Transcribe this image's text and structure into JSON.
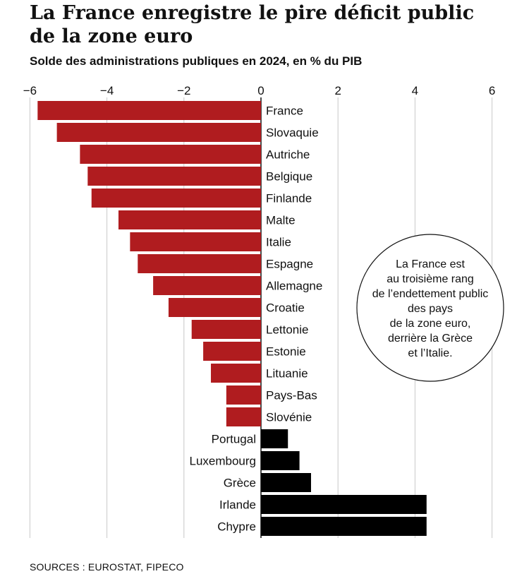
{
  "chart_data": {
    "type": "bar",
    "orientation": "horizontal",
    "title": "La France enregistre le pire déficit public de la zone euro",
    "subtitle": "Solde des administrations publiques en 2024, en % du PIB",
    "xlim": [
      -6,
      6
    ],
    "xticks": [
      -6,
      -4,
      -2,
      0,
      2,
      4,
      6
    ],
    "xtick_labels": [
      "−6",
      "−4",
      "−2",
      "0",
      "2",
      "4",
      "6"
    ],
    "grid": true,
    "categories": [
      "France",
      "Slovaquie",
      "Autriche",
      "Belgique",
      "Finlande",
      "Malte",
      "Italie",
      "Espagne",
      "Allemagne",
      "Croatie",
      "Lettonie",
      "Estonie",
      "Lituanie",
      "Pays-Bas",
      "Slovénie",
      "Portugal",
      "Luxembourg",
      "Grèce",
      "Irlande",
      "Chypre"
    ],
    "values": [
      -5.8,
      -5.3,
      -4.7,
      -4.5,
      -4.4,
      -3.7,
      -3.4,
      -3.2,
      -2.8,
      -2.4,
      -1.8,
      -1.5,
      -1.3,
      -0.9,
      -0.9,
      0.7,
      1.0,
      1.3,
      4.3,
      4.3
    ],
    "colors": {
      "negative": "#b01c1f",
      "positive": "#000000"
    },
    "annotation": [
      "La France est",
      "au troisième rang",
      "de l’endettement public",
      "des pays",
      "de la zone euro,",
      "derrière la Grèce",
      "et l’Italie."
    ]
  },
  "source": "SOURCES : EUROSTAT, FIPECO"
}
